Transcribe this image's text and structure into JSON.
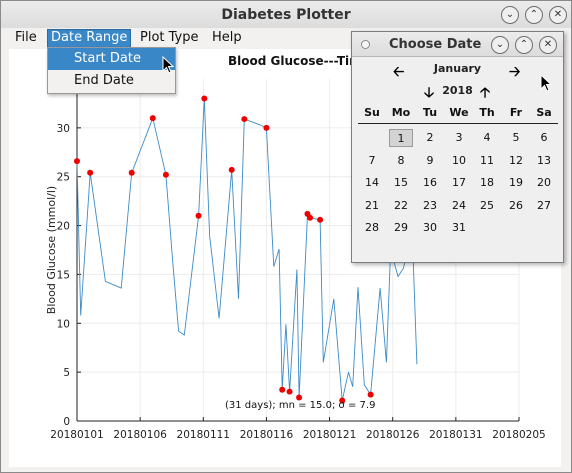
{
  "window": {
    "title": "Diabetes Plotter"
  },
  "menu": {
    "items": [
      "File",
      "Date Range",
      "Plot Type",
      "Help"
    ]
  },
  "dropdown": {
    "items": [
      "Start Date",
      "End Date"
    ]
  },
  "plot": {
    "title": "Blood Glucose---Tim",
    "stats": "(31 days); mn = 15.0; σ = 7.9"
  },
  "date_dialog": {
    "title": "Choose Date",
    "month": "January",
    "year": "2018",
    "weekday_headers": [
      "Su",
      "Mo",
      "Tu",
      "We",
      "Th",
      "Fr",
      "Sa"
    ],
    "weeks": [
      [
        "",
        "1",
        "2",
        "3",
        "4",
        "5",
        "6"
      ],
      [
        "7",
        "8",
        "9",
        "10",
        "11",
        "12",
        "13"
      ],
      [
        "14",
        "15",
        "16",
        "17",
        "18",
        "19",
        "20"
      ],
      [
        "21",
        "22",
        "23",
        "24",
        "25",
        "26",
        "27"
      ],
      [
        "28",
        "29",
        "30",
        "31",
        "",
        "",
        ""
      ]
    ],
    "selected_day": "1"
  },
  "chart_data": {
    "type": "line",
    "title": "Blood Glucose---Tim",
    "xlabel": "",
    "ylabel": "Blood Glucose (mmol/l)",
    "xlim": [
      "2018-01-01",
      "2018-02-05"
    ],
    "ylim": [
      0,
      35
    ],
    "x_tick_labels": [
      "20180101",
      "20180106",
      "20180111",
      "20180116",
      "20180121",
      "20180126",
      "20180131",
      "20180205"
    ],
    "y_ticks": [
      0,
      5,
      10,
      15,
      20,
      25,
      30
    ],
    "annotation": "(31 days); mn = 15.0; σ = 7.9",
    "series": [
      {
        "type": "line",
        "color": "#3d8bc9",
        "points": [
          [
            "2018-01-01 00:00",
            26.6
          ],
          [
            "2018-01-01 07:00",
            10.8
          ],
          [
            "2018-01-02 01:00",
            25.4
          ],
          [
            "2018-01-03 06:00",
            14.3
          ],
          [
            "2018-01-04 12:00",
            13.6
          ],
          [
            "2018-01-05 08:00",
            25.4
          ],
          [
            "2018-01-07 00:00",
            31.0
          ],
          [
            "2018-01-08 01:00",
            25.2
          ],
          [
            "2018-01-08 14:00",
            16.2
          ],
          [
            "2018-01-09 01:00",
            9.2
          ],
          [
            "2018-01-09 12:00",
            8.8
          ],
          [
            "2018-01-10 15:00",
            21.0
          ],
          [
            "2018-01-11 02:00",
            33.0
          ],
          [
            "2018-01-11 12:00",
            19.0
          ],
          [
            "2018-01-12 06:00",
            10.5
          ],
          [
            "2018-01-13 06:00",
            25.7
          ],
          [
            "2018-01-13 19:00",
            12.5
          ],
          [
            "2018-01-14 06:00",
            30.9
          ],
          [
            "2018-01-15 12:00",
            30.3
          ],
          [
            "2018-01-16 00:00",
            30.0
          ],
          [
            "2018-01-16 14:00",
            15.8
          ],
          [
            "2018-01-17 00:00",
            17.6
          ],
          [
            "2018-01-17 06:00",
            3.2
          ],
          [
            "2018-01-17 13:00",
            9.9
          ],
          [
            "2018-01-17 20:00",
            3.0
          ],
          [
            "2018-01-18 10:00",
            15.5
          ],
          [
            "2018-01-18 14:00",
            2.4
          ],
          [
            "2018-01-19 06:00",
            21.2
          ],
          [
            "2018-01-19 11:00",
            20.8
          ],
          [
            "2018-01-20 06:00",
            20.6
          ],
          [
            "2018-01-20 12:00",
            6.0
          ],
          [
            "2018-01-21 08:00",
            12.5
          ],
          [
            "2018-01-22 00:00",
            2.1
          ],
          [
            "2018-01-22 12:00",
            5.0
          ],
          [
            "2018-01-22 20:00",
            3.5
          ],
          [
            "2018-01-23 06:00",
            13.7
          ],
          [
            "2018-01-23 18:00",
            3.7
          ],
          [
            "2018-01-24 06:00",
            2.7
          ],
          [
            "2018-01-25 00:00",
            13.6
          ],
          [
            "2018-01-25 12:00",
            6.0
          ],
          [
            "2018-01-25 20:00",
            17.5
          ],
          [
            "2018-01-26 10:00",
            14.8
          ],
          [
            "2018-01-26 20:00",
            15.6
          ],
          [
            "2018-01-27 04:00",
            17.2
          ],
          [
            "2018-01-27 12:00",
            20.8
          ],
          [
            "2018-01-27 22:00",
            5.8
          ]
        ]
      },
      {
        "type": "scatter",
        "color": "#ee0000",
        "points": [
          [
            "2018-01-01 00:00",
            26.6
          ],
          [
            "2018-01-02 01:00",
            25.4
          ],
          [
            "2018-01-05 08:00",
            25.4
          ],
          [
            "2018-01-07 00:00",
            31.0
          ],
          [
            "2018-01-08 01:00",
            25.2
          ],
          [
            "2018-01-10 15:00",
            21.0
          ],
          [
            "2018-01-11 02:00",
            33.0
          ],
          [
            "2018-01-13 06:00",
            25.7
          ],
          [
            "2018-01-14 06:00",
            30.9
          ],
          [
            "2018-01-16 00:00",
            30.0
          ],
          [
            "2018-01-17 06:00",
            3.2
          ],
          [
            "2018-01-17 20:00",
            3.0
          ],
          [
            "2018-01-18 14:00",
            2.4
          ],
          [
            "2018-01-19 06:00",
            21.2
          ],
          [
            "2018-01-19 11:00",
            20.8
          ],
          [
            "2018-01-20 06:00",
            20.6
          ],
          [
            "2018-01-22 00:00",
            2.1
          ],
          [
            "2018-01-24 06:00",
            2.7
          ]
        ]
      }
    ]
  }
}
